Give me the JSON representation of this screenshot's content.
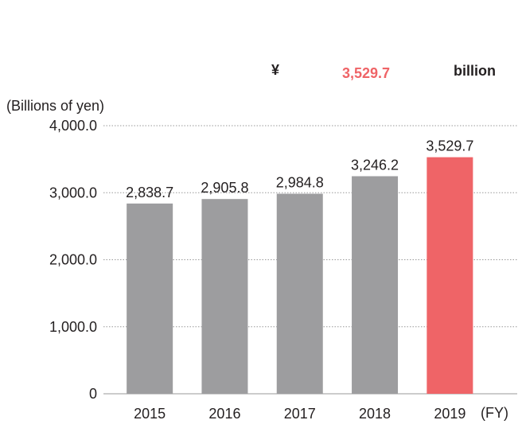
{
  "chart_data": {
    "type": "bar",
    "headline": {
      "prefix": "¥",
      "value": "3,529.7",
      "suffix": "billion"
    },
    "y_axis_label": "(Billions of yen)",
    "x_axis_label": "(FY)",
    "categories": [
      "2015",
      "2016",
      "2017",
      "2018",
      "2019"
    ],
    "values": [
      2838.7,
      2905.8,
      2984.8,
      3246.2,
      3529.7
    ],
    "value_labels": [
      "2,838.7",
      "2,905.8",
      "2,984.8",
      "3,246.2",
      "3,529.7"
    ],
    "colors": [
      "#9d9d9f",
      "#9d9d9f",
      "#9d9d9f",
      "#9d9d9f",
      "#ef6467"
    ],
    "headline_color": "#ef6467",
    "ylim": [
      0,
      4000
    ],
    "yticks": [
      0,
      {
        "value": 1000,
        "label": "1,000.0"
      },
      {
        "value": 2000,
        "label": "2,000.0"
      },
      {
        "value": 3000,
        "label": "3,000.0"
      },
      {
        "value": 4000,
        "label": "4,000.0"
      }
    ],
    "grid": true
  }
}
